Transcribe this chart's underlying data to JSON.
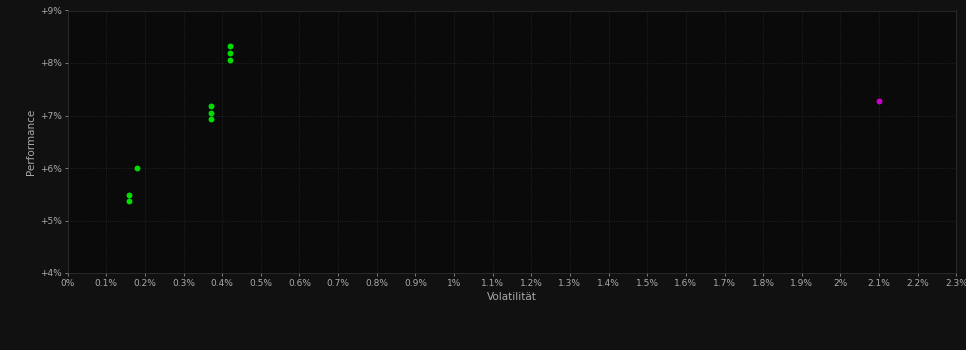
{
  "background_color": "#111111",
  "plot_bg_color": "#0a0a0a",
  "grid_color": "#2a2a2a",
  "text_color": "#aaaaaa",
  "xlabel": "Volatilität",
  "ylabel": "Performance",
  "xlim": [
    0.0,
    0.023
  ],
  "ylim": [
    0.04,
    0.09
  ],
  "green_points": [
    [
      0.0042,
      0.0832
    ],
    [
      0.0042,
      0.082
    ],
    [
      0.0042,
      0.0805
    ],
    [
      0.0037,
      0.0718
    ],
    [
      0.0037,
      0.0705
    ],
    [
      0.0037,
      0.0693
    ],
    [
      0.0018,
      0.06
    ],
    [
      0.0016,
      0.0548
    ],
    [
      0.0016,
      0.0538
    ]
  ],
  "magenta_points": [
    [
      0.021,
      0.0728
    ]
  ],
  "green_color": "#00dd00",
  "magenta_color": "#cc00cc",
  "marker_size": 18
}
